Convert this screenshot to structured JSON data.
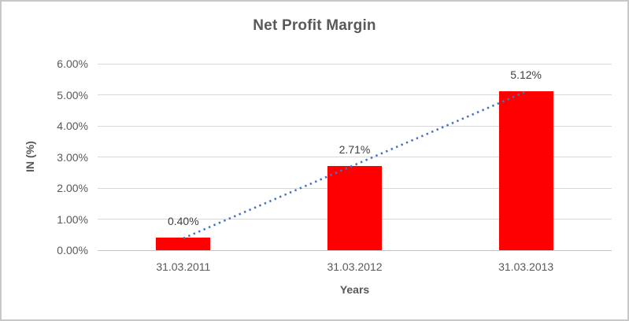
{
  "chart_data": {
    "type": "bar",
    "title": "Net Profit Margin",
    "xlabel": "Years",
    "ylabel": "IN (%)",
    "categories": [
      "31.03.2011",
      "31.03.2012",
      "31.03.2013"
    ],
    "values": [
      0.4,
      2.71,
      5.12
    ],
    "value_labels": [
      "0.40%",
      "2.71%",
      "5.12%"
    ],
    "y_tick_labels": [
      "0.00%",
      "1.00%",
      "2.00%",
      "3.00%",
      "4.00%",
      "5.00%",
      "6.00%"
    ],
    "ylim": [
      0,
      6
    ],
    "y_tick_step": 1,
    "grid": true,
    "legend": "none",
    "trendline": {
      "type": "linear",
      "style": "dotted"
    },
    "colors": {
      "bar": "#ff0000",
      "trendline": "#4472c4",
      "title_text": "#595959",
      "tick_text": "#595959",
      "data_label_text": "#404040",
      "gridline": "#d9d9d9",
      "border": "#c8c8c8"
    }
  }
}
